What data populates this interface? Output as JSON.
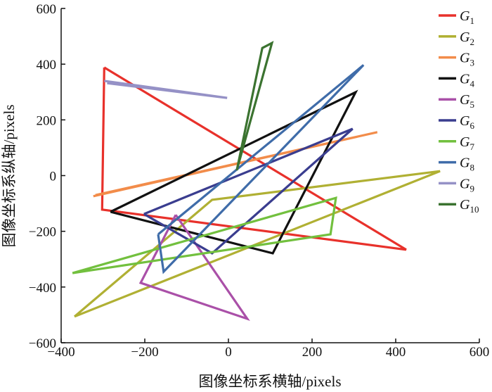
{
  "chart_data": {
    "type": "line",
    "title": "",
    "xlabel": "图像坐标系横轴/pixels",
    "ylabel": "图像坐标系纵轴/pixels",
    "xlim": [
      -400,
      600
    ],
    "ylim": [
      -600,
      600
    ],
    "xticks": [
      -400,
      -200,
      0,
      200,
      400,
      600
    ],
    "yticks": [
      -600,
      -400,
      -200,
      0,
      200,
      400,
      600
    ],
    "xtick_labels": [
      "−400",
      "−200",
      "0",
      "200",
      "400",
      "600"
    ],
    "ytick_labels": [
      "−600",
      "−400",
      "−200",
      "0",
      "200",
      "400",
      "600"
    ],
    "grid": false,
    "legend_position": "top-right",
    "series": [
      {
        "name": "G",
        "sub": "1",
        "color": "#e8312b",
        "points": [
          [
            -297,
            388
          ],
          [
            425,
            -266
          ],
          [
            -302,
            -122
          ],
          [
            -297,
            388
          ]
        ]
      },
      {
        "name": "G",
        "sub": "2",
        "color": "#b0b033",
        "points": [
          [
            -368,
            -506
          ],
          [
            -39,
            -87
          ],
          [
            506,
            16
          ],
          [
            -368,
            -506
          ]
        ]
      },
      {
        "name": "G",
        "sub": "3",
        "color": "#f28c4a",
        "points": [
          [
            -323,
            -74
          ],
          [
            356,
            156
          ],
          [
            -318,
            -70
          ]
        ]
      },
      {
        "name": "G",
        "sub": "4",
        "color": "#111111",
        "points": [
          [
            -282,
            -130
          ],
          [
            304,
            299
          ],
          [
            106,
            -279
          ],
          [
            -282,
            -130
          ]
        ]
      },
      {
        "name": "G",
        "sub": "5",
        "color": "#aa50a8",
        "points": [
          [
            -126,
            -141
          ],
          [
            -210,
            -385
          ],
          [
            45,
            -514
          ],
          [
            -126,
            -141
          ]
        ]
      },
      {
        "name": "G",
        "sub": "6",
        "color": "#3a3d8f",
        "points": [
          [
            -202,
            -138
          ],
          [
            -39,
            -279
          ],
          [
            297,
            168
          ],
          [
            -202,
            -138
          ]
        ]
      },
      {
        "name": "G",
        "sub": "7",
        "color": "#72c03e",
        "points": [
          [
            -373,
            -350
          ],
          [
            257,
            -80
          ],
          [
            244,
            -211
          ],
          [
            -373,
            -350
          ]
        ]
      },
      {
        "name": "G",
        "sub": "8",
        "color": "#3f6ca9",
        "points": [
          [
            -168,
            -211
          ],
          [
            -155,
            -345
          ],
          [
            323,
            397
          ],
          [
            -168,
            -211
          ]
        ]
      },
      {
        "name": "G",
        "sub": "9",
        "color": "#9591c6",
        "points": [
          [
            -297,
            340
          ],
          [
            -3,
            279
          ],
          [
            -290,
            332
          ]
        ]
      },
      {
        "name": "G",
        "sub": "10",
        "color": "#3b7330",
        "points": [
          [
            20,
            19
          ],
          [
            81,
            458
          ],
          [
            104,
            476
          ],
          [
            20,
            19
          ]
        ]
      }
    ]
  }
}
